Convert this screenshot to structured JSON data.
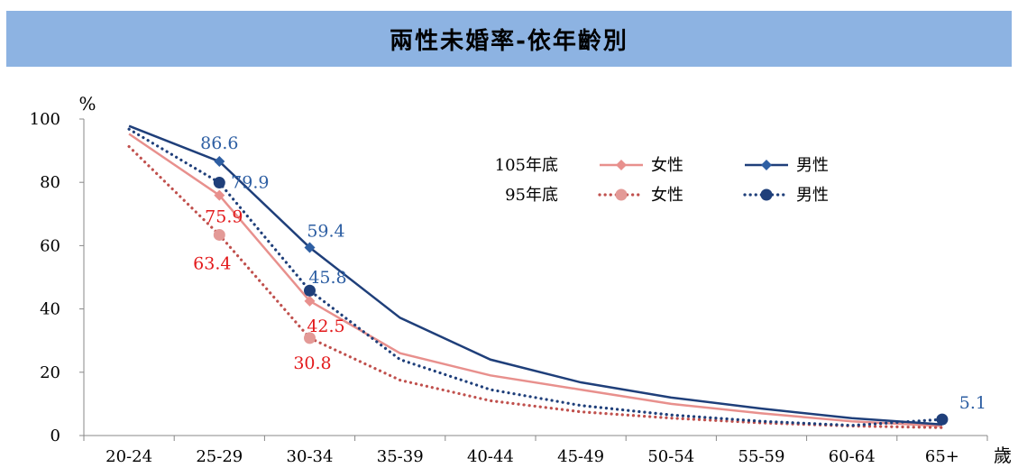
{
  "chart_data": {
    "type": "line",
    "title": "兩性未婚率-依年齡別",
    "ylabel": "%",
    "xlabel": "歲",
    "ylim": [
      0,
      100
    ],
    "yticks": [
      0,
      20,
      40,
      60,
      80,
      100
    ],
    "categories": [
      "20-24",
      "25-29",
      "30-34",
      "35-39",
      "40-44",
      "45-49",
      "50-54",
      "55-59",
      "60-64",
      "65+"
    ],
    "legend": {
      "placement": "top-center",
      "groups": [
        {
          "label": "105年底",
          "items": [
            "女性",
            "男性"
          ]
        },
        {
          "label": "95年底",
          "items": [
            "女性",
            "男性"
          ]
        }
      ]
    },
    "series": [
      {
        "group": "105年底",
        "name": "女性",
        "color": "#e8908d",
        "style": "solid",
        "marker": "diamond",
        "values": [
          95.3,
          75.9,
          42.5,
          26.0,
          19.0,
          14.5,
          10.0,
          7.0,
          4.5,
          3.0
        ],
        "labels": [
          null,
          "75.9",
          "42.5",
          null,
          null,
          null,
          null,
          null,
          null,
          null
        ]
      },
      {
        "group": "105年底",
        "name": "男性",
        "color": "#1f3f7a",
        "style": "solid",
        "marker": "diamond",
        "values": [
          97.8,
          86.6,
          59.4,
          37.2,
          24.0,
          16.8,
          12.0,
          8.5,
          5.5,
          3.5
        ],
        "labels": [
          null,
          "86.6",
          "59.4",
          null,
          null,
          null,
          null,
          null,
          null,
          null
        ]
      },
      {
        "group": "95年底",
        "name": "女性",
        "color": "#c0504d",
        "style": "dotted",
        "marker": "circle",
        "values": [
          91.3,
          63.4,
          30.8,
          17.5,
          11.0,
          7.5,
          5.5,
          4.0,
          3.0,
          2.5
        ],
        "labels": [
          null,
          "63.4",
          "30.8",
          null,
          null,
          null,
          null,
          null,
          null,
          null
        ]
      },
      {
        "group": "95年底",
        "name": "男性",
        "color": "#1f3f7a",
        "style": "dotted",
        "marker": "circle",
        "values": [
          96.8,
          79.9,
          45.8,
          24.0,
          14.5,
          9.5,
          6.5,
          4.5,
          3.2,
          5.1
        ],
        "labels": [
          null,
          "79.9",
          "45.8",
          null,
          null,
          null,
          null,
          null,
          null,
          "5.1"
        ]
      }
    ]
  }
}
